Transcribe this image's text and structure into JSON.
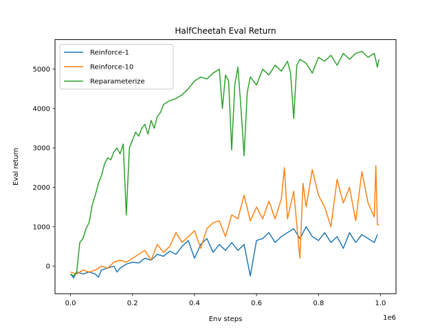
{
  "chart_data": {
    "type": "line",
    "title": "HalfCheetah Eval Return",
    "xlabel": "Env steps",
    "ylabel": "Eval return",
    "x_offset_label": "1e6",
    "xlim": [
      -0.05,
      1.05
    ],
    "ylim": [
      -700,
      5750
    ],
    "x_ticks": [
      0.0,
      0.2,
      0.4,
      0.6,
      0.8,
      1.0
    ],
    "x_tick_labels": [
      "0.0",
      "0.2",
      "0.4",
      "0.6",
      "0.8",
      "1.0"
    ],
    "y_ticks": [
      0,
      1000,
      2000,
      3000,
      4000,
      5000
    ],
    "y_tick_labels": [
      "0",
      "1000",
      "2000",
      "3000",
      "4000",
      "5000"
    ],
    "grid": false,
    "legend_position": "upper-left",
    "series": [
      {
        "name": "Reinforce-1",
        "color": "#1f77b4",
        "points": [
          [
            0.0,
            -200
          ],
          [
            0.01,
            -300
          ],
          [
            0.02,
            -150
          ],
          [
            0.04,
            -200
          ],
          [
            0.06,
            -150
          ],
          [
            0.08,
            -200
          ],
          [
            0.09,
            -280
          ],
          [
            0.1,
            -100
          ],
          [
            0.12,
            -50
          ],
          [
            0.14,
            0
          ],
          [
            0.15,
            -150
          ],
          [
            0.16,
            -50
          ],
          [
            0.18,
            50
          ],
          [
            0.2,
            100
          ],
          [
            0.22,
            80
          ],
          [
            0.24,
            200
          ],
          [
            0.26,
            150
          ],
          [
            0.28,
            300
          ],
          [
            0.3,
            250
          ],
          [
            0.32,
            380
          ],
          [
            0.34,
            300
          ],
          [
            0.36,
            500
          ],
          [
            0.38,
            650
          ],
          [
            0.4,
            200
          ],
          [
            0.42,
            550
          ],
          [
            0.44,
            700
          ],
          [
            0.46,
            350
          ],
          [
            0.48,
            550
          ],
          [
            0.5,
            400
          ],
          [
            0.52,
            600
          ],
          [
            0.54,
            400
          ],
          [
            0.56,
            550
          ],
          [
            0.58,
            -250
          ],
          [
            0.6,
            650
          ],
          [
            0.62,
            700
          ],
          [
            0.64,
            850
          ],
          [
            0.66,
            600
          ],
          [
            0.68,
            750
          ],
          [
            0.7,
            850
          ],
          [
            0.72,
            950
          ],
          [
            0.74,
            700
          ],
          [
            0.76,
            1000
          ],
          [
            0.78,
            750
          ],
          [
            0.8,
            650
          ],
          [
            0.82,
            850
          ],
          [
            0.84,
            600
          ],
          [
            0.86,
            750
          ],
          [
            0.88,
            450
          ],
          [
            0.9,
            850
          ],
          [
            0.92,
            600
          ],
          [
            0.94,
            800
          ],
          [
            0.96,
            700
          ],
          [
            0.98,
            600
          ],
          [
            0.99,
            800
          ]
        ]
      },
      {
        "name": "Reinforce-10",
        "color": "#ff7f0e",
        "points": [
          [
            0.0,
            -150
          ],
          [
            0.02,
            -200
          ],
          [
            0.04,
            -100
          ],
          [
            0.06,
            -150
          ],
          [
            0.08,
            -100
          ],
          [
            0.1,
            0
          ],
          [
            0.12,
            -50
          ],
          [
            0.14,
            100
          ],
          [
            0.16,
            150
          ],
          [
            0.18,
            100
          ],
          [
            0.2,
            200
          ],
          [
            0.22,
            300
          ],
          [
            0.24,
            400
          ],
          [
            0.26,
            150
          ],
          [
            0.28,
            550
          ],
          [
            0.3,
            350
          ],
          [
            0.32,
            500
          ],
          [
            0.34,
            850
          ],
          [
            0.36,
            600
          ],
          [
            0.38,
            750
          ],
          [
            0.4,
            900
          ],
          [
            0.42,
            450
          ],
          [
            0.44,
            950
          ],
          [
            0.46,
            1100
          ],
          [
            0.48,
            1150
          ],
          [
            0.5,
            750
          ],
          [
            0.52,
            1300
          ],
          [
            0.54,
            1200
          ],
          [
            0.56,
            1800
          ],
          [
            0.58,
            1150
          ],
          [
            0.6,
            1500
          ],
          [
            0.62,
            1200
          ],
          [
            0.64,
            1650
          ],
          [
            0.66,
            1200
          ],
          [
            0.68,
            1700
          ],
          [
            0.69,
            2500
          ],
          [
            0.7,
            1200
          ],
          [
            0.72,
            1900
          ],
          [
            0.74,
            200
          ],
          [
            0.75,
            2100
          ],
          [
            0.76,
            1500
          ],
          [
            0.78,
            2450
          ],
          [
            0.8,
            1800
          ],
          [
            0.82,
            1500
          ],
          [
            0.84,
            1000
          ],
          [
            0.86,
            2200
          ],
          [
            0.88,
            1600
          ],
          [
            0.9,
            2000
          ],
          [
            0.92,
            1150
          ],
          [
            0.94,
            2400
          ],
          [
            0.96,
            1600
          ],
          [
            0.98,
            1250
          ],
          [
            0.985,
            2550
          ],
          [
            0.99,
            1050
          ],
          [
            0.995,
            1050
          ]
        ]
      },
      {
        "name": "Reparameterize",
        "color": "#2ca02c",
        "points": [
          [
            0.0,
            -200
          ],
          [
            0.01,
            -250
          ],
          [
            0.02,
            -150
          ],
          [
            0.03,
            600
          ],
          [
            0.04,
            700
          ],
          [
            0.05,
            950
          ],
          [
            0.06,
            1100
          ],
          [
            0.07,
            1550
          ],
          [
            0.08,
            1800
          ],
          [
            0.09,
            2100
          ],
          [
            0.1,
            2300
          ],
          [
            0.11,
            2600
          ],
          [
            0.12,
            2750
          ],
          [
            0.13,
            2700
          ],
          [
            0.14,
            2900
          ],
          [
            0.15,
            3000
          ],
          [
            0.16,
            2850
          ],
          [
            0.17,
            3100
          ],
          [
            0.18,
            1300
          ],
          [
            0.19,
            3000
          ],
          [
            0.2,
            3200
          ],
          [
            0.21,
            3400
          ],
          [
            0.22,
            3300
          ],
          [
            0.23,
            3500
          ],
          [
            0.24,
            3600
          ],
          [
            0.25,
            3350
          ],
          [
            0.26,
            3700
          ],
          [
            0.27,
            3500
          ],
          [
            0.28,
            3800
          ],
          [
            0.29,
            3900
          ],
          [
            0.3,
            4100
          ],
          [
            0.32,
            4200
          ],
          [
            0.34,
            4250
          ],
          [
            0.36,
            4350
          ],
          [
            0.38,
            4500
          ],
          [
            0.4,
            4700
          ],
          [
            0.42,
            4800
          ],
          [
            0.44,
            4750
          ],
          [
            0.46,
            4900
          ],
          [
            0.48,
            5000
          ],
          [
            0.49,
            4000
          ],
          [
            0.5,
            4850
          ],
          [
            0.51,
            4700
          ],
          [
            0.52,
            2950
          ],
          [
            0.53,
            4600
          ],
          [
            0.54,
            5050
          ],
          [
            0.55,
            4000
          ],
          [
            0.56,
            2800
          ],
          [
            0.57,
            4400
          ],
          [
            0.58,
            4800
          ],
          [
            0.6,
            4600
          ],
          [
            0.62,
            5000
          ],
          [
            0.64,
            4850
          ],
          [
            0.66,
            5100
          ],
          [
            0.68,
            4950
          ],
          [
            0.7,
            5200
          ],
          [
            0.71,
            4900
          ],
          [
            0.72,
            3750
          ],
          [
            0.73,
            5100
          ],
          [
            0.74,
            5250
          ],
          [
            0.76,
            5150
          ],
          [
            0.78,
            4900
          ],
          [
            0.8,
            5300
          ],
          [
            0.82,
            5200
          ],
          [
            0.84,
            5350
          ],
          [
            0.86,
            5100
          ],
          [
            0.88,
            5400
          ],
          [
            0.9,
            5250
          ],
          [
            0.92,
            5400
          ],
          [
            0.94,
            5450
          ],
          [
            0.96,
            5300
          ],
          [
            0.98,
            5400
          ],
          [
            0.99,
            5050
          ],
          [
            0.995,
            5250
          ]
        ]
      }
    ]
  }
}
